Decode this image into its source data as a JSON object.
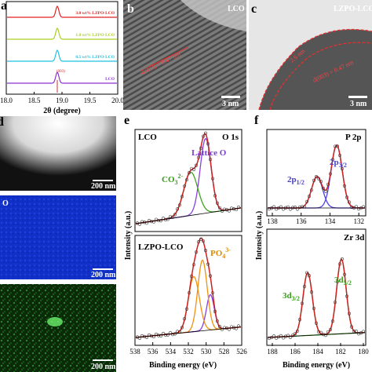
{
  "panels": {
    "a": {
      "label": "a",
      "curves": [
        "3.0 wt% LZPO-LCO",
        "1.0 wt% LZPO-LCO",
        "0.5 wt% LZPO-LCO",
        "LCO"
      ],
      "peak": "(003)",
      "xticks": [
        "18.0",
        "18.5",
        "19.0",
        "19.5",
        "20.0"
      ],
      "xlabel": "2θ (degree)"
    },
    "b": {
      "label": "b",
      "sample": "LCO",
      "spacing": "d(003) = 0.47 nm",
      "scale": "3 nm"
    },
    "c": {
      "label": "c",
      "sample": "LZPO-LCO",
      "coating": "2.6 nm",
      "spacing": "d(003) = 0.47 nm",
      "scale": "3 nm"
    },
    "d": {
      "label": "d",
      "element": "O",
      "scales": [
        "200 nm",
        "200 nm",
        "200 nm"
      ]
    },
    "e": {
      "label": "e",
      "top": {
        "sample": "LCO",
        "core": "O 1s",
        "lattice": "Lattice O",
        "co3": [
          "CO",
          "3",
          "2-"
        ]
      },
      "bottom": {
        "sample": "LZPO-LCO",
        "po4": [
          "PO",
          "4",
          "3-"
        ]
      },
      "xticks": [
        "538",
        "536",
        "534",
        "532",
        "530",
        "528",
        "526"
      ],
      "xlabel": "Binding energy (eV)",
      "ylabel": "Intensity (a.u.)"
    },
    "f": {
      "label": "f",
      "top": {
        "core": "P 2p",
        "p32": [
          "2p",
          "3/2"
        ],
        "p12": [
          "2p",
          "1/2"
        ],
        "xticks": [
          "138",
          "136",
          "134",
          "132"
        ]
      },
      "bottom": {
        "core": "Zr 3d",
        "d32": [
          "3d",
          "3/2"
        ],
        "d52": [
          "3d",
          "5/2"
        ],
        "xticks": [
          "188",
          "186",
          "184",
          "182",
          "180"
        ]
      },
      "xlabel": "Binding energy (eV)",
      "ylabel": "Intensity (a.u.)"
    }
  }
}
